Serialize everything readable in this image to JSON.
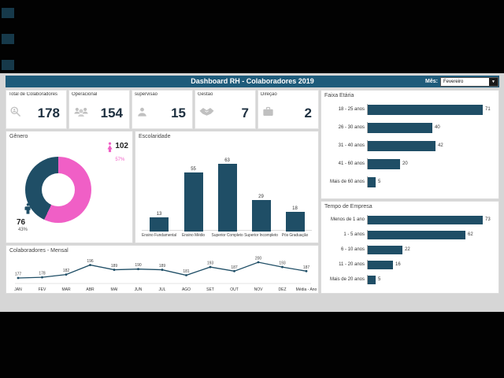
{
  "titlebar": {
    "title": "Dashboard RH - Colaboradores 2019",
    "month_label": "Mês:",
    "month_value": "Fevereiro"
  },
  "colors": {
    "titlebar_bg": "#1E5B7A",
    "navy": "#1F4E66",
    "pink": "#F05FC6",
    "screen_bg": "#D6D6D6",
    "panel_bg": "#FFFFFF"
  },
  "kpis": [
    {
      "label": "Total de Colaboradores",
      "value": "178",
      "icon": "search-person-icon"
    },
    {
      "label": "Operacional",
      "value": "154",
      "icon": "people-group-icon"
    },
    {
      "label": "supervisão",
      "value": "15",
      "icon": "person-icon"
    },
    {
      "label": "Gestão",
      "value": "7",
      "icon": "handshake-icon"
    },
    {
      "label": "Direção",
      "value": "2",
      "icon": "briefcase-icon"
    }
  ],
  "chart_data": [
    {
      "id": "genero",
      "type": "pie",
      "donut": true,
      "title": "Gênero",
      "slices": [
        {
          "label": "Feminino",
          "value": 102,
          "pct": "57%",
          "color": "#F05FC6"
        },
        {
          "label": "Masculino",
          "value": 76,
          "pct": "43%",
          "color": "#1F4E66"
        }
      ]
    },
    {
      "id": "escolaridade",
      "type": "bar",
      "title": "Escolaridade",
      "categories": [
        "Ensino Fundamental",
        "Ensino Médio",
        "Superior Completo",
        "Superior Incompleto",
        "Pós Graduação"
      ],
      "values": [
        13,
        55,
        63,
        29,
        18
      ]
    },
    {
      "id": "mensal",
      "type": "line",
      "title": "Colaboradores - Mensal",
      "categories": [
        "JAN",
        "FEV",
        "MAR",
        "ABR",
        "MAI",
        "JUN",
        "JUL",
        "AGO",
        "SET",
        "OUT",
        "NOV",
        "DEZ",
        "Média - Ano"
      ],
      "values": [
        177,
        178,
        182,
        196,
        189,
        190,
        189,
        181,
        193,
        187,
        200,
        193,
        187
      ]
    },
    {
      "id": "faixa-etaria",
      "type": "bar-horizontal",
      "title": "Faixa Etária",
      "categories": [
        "18 - 25 anos",
        "26 - 30 anos",
        "31 - 40 anos",
        "41 - 60 anos",
        "Mais de 60 anos"
      ],
      "values": [
        71,
        40,
        42,
        20,
        5
      ]
    },
    {
      "id": "tempo-empresa",
      "type": "bar-horizontal",
      "title": "Tempo de Empresa",
      "categories": [
        "Menos de 1 ano",
        "1 - 5 anos",
        "6 - 10 anos",
        "11 - 20 anos",
        "Mais de 20 anos"
      ],
      "values": [
        73,
        62,
        22,
        16,
        5
      ]
    }
  ]
}
